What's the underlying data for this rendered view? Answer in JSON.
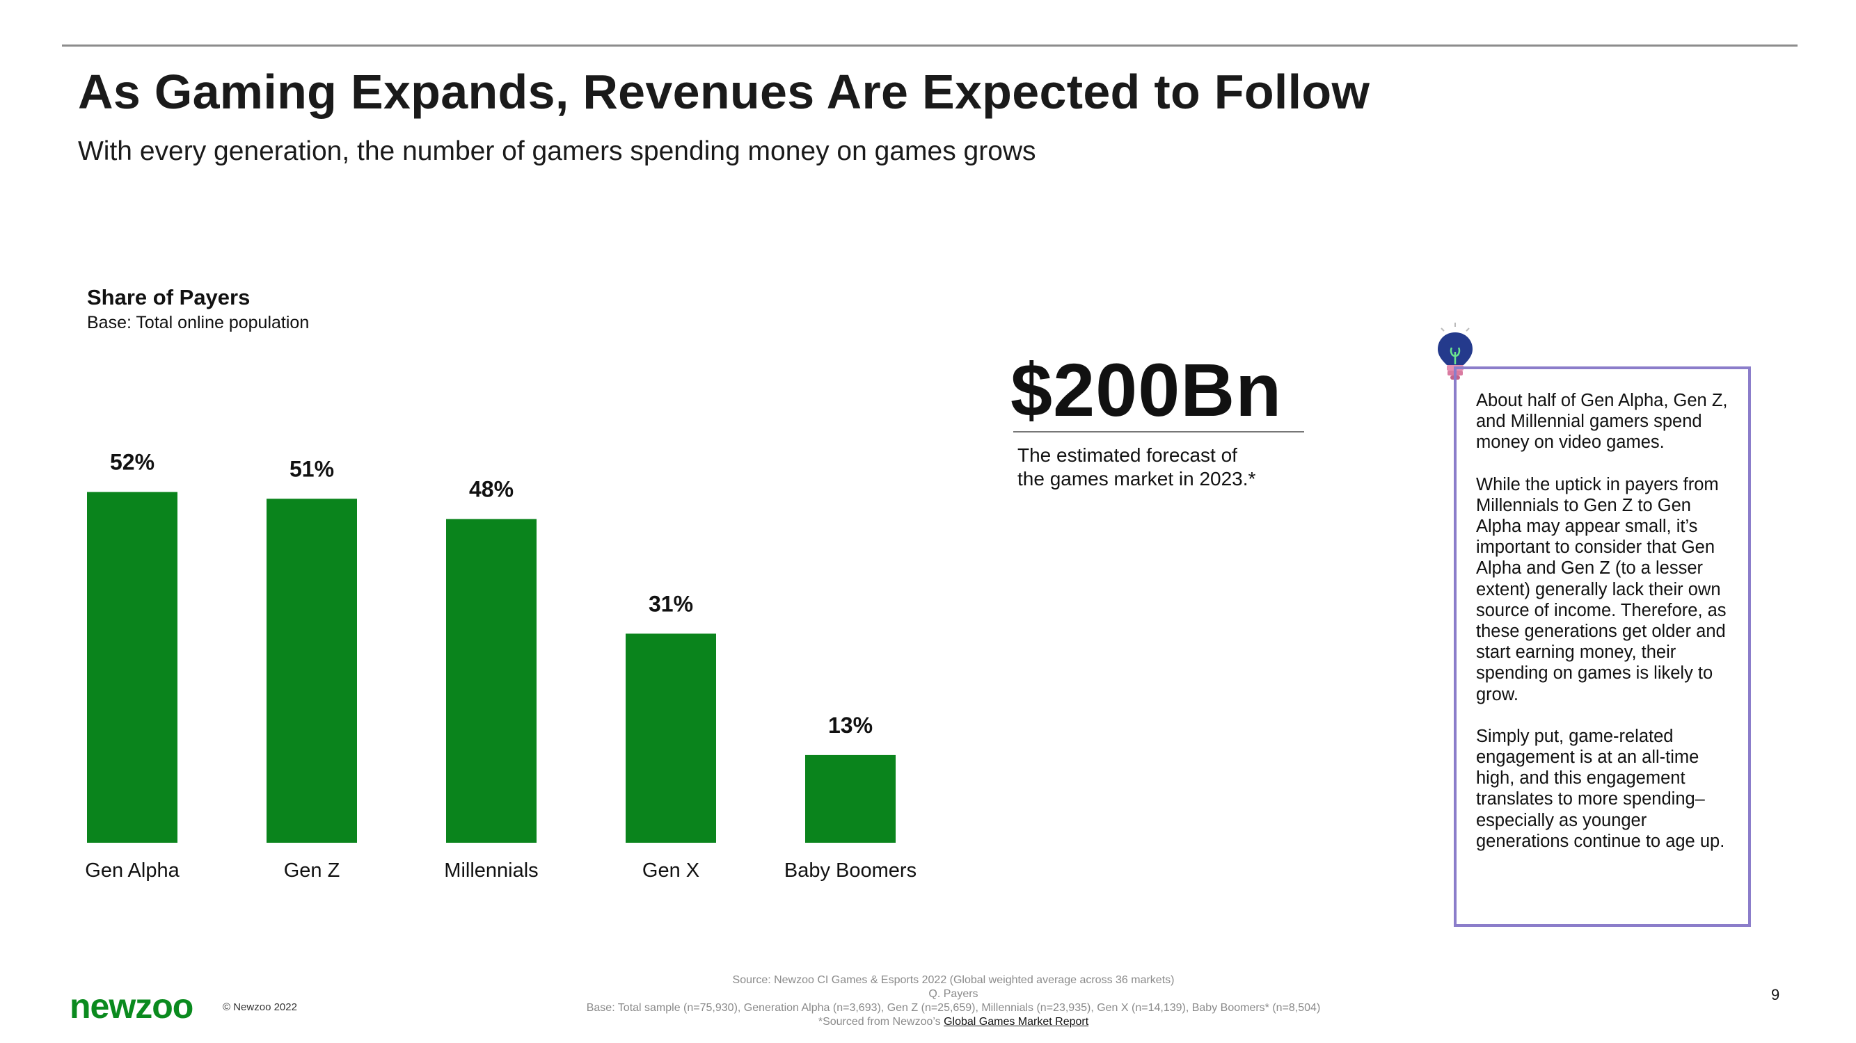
{
  "slide": {
    "title": "As Gaming Expands, Revenues Are Expected to Follow",
    "subtitle": "With every generation, the number of gamers spending money on games grows"
  },
  "chart_data": {
    "type": "bar",
    "title": "Share of Payers",
    "subtitle": "Base: Total online population",
    "categories": [
      "Gen Alpha",
      "Gen Z",
      "Millennials",
      "Gen X",
      "Baby Boomers"
    ],
    "values": [
      52,
      51,
      48,
      31,
      13
    ],
    "value_labels": [
      "52%",
      "51%",
      "48%",
      "31%",
      "13%"
    ],
    "unit": "%",
    "ylim": [
      0,
      60
    ],
    "grid": false,
    "legend": "none",
    "bar_color": "#0a841c"
  },
  "stat": {
    "value": "$200Bn",
    "caption": "The estimated forecast of the games market in 2023.*"
  },
  "insight": {
    "icon": "lightbulb-icon",
    "paragraphs": [
      "About half of Gen Alpha, Gen Z, and Millennial gamers spend money on video games.",
      "While the uptick in payers from Millennials to Gen Z to Gen Alpha may appear small, it’s important to consider that Gen Alpha and Gen Z (to a lesser extent) generally lack their own source of income. Therefore, as these generations get older and start earning money, their spending on games is likely to grow.",
      "Simply put, game-related engagement is at an all-time high, and  this engagement translates to more spending–especially as younger generations continue to age up."
    ],
    "border_color": "#8b7dca"
  },
  "footer": {
    "logo": "newzoo",
    "logo_color": "#0a8a1e",
    "copyright": "© Newzoo 2022",
    "page_number": "9",
    "source_line": "Source: Newzoo CI Games & Esports 2022 (Global weighted average across 36 markets)",
    "question_line": "Q. Payers",
    "base_line": "Base: Total sample (n=75,930), Generation Alpha (n=3,693), Gen Z (n=25,659), Millennials (n=23,935), Gen X (n=14,139), Baby Boomers* (n=8,504)",
    "sourced_prefix": "*Sourced from Newzoo’s ",
    "sourced_link": "Global Games Market Report"
  }
}
